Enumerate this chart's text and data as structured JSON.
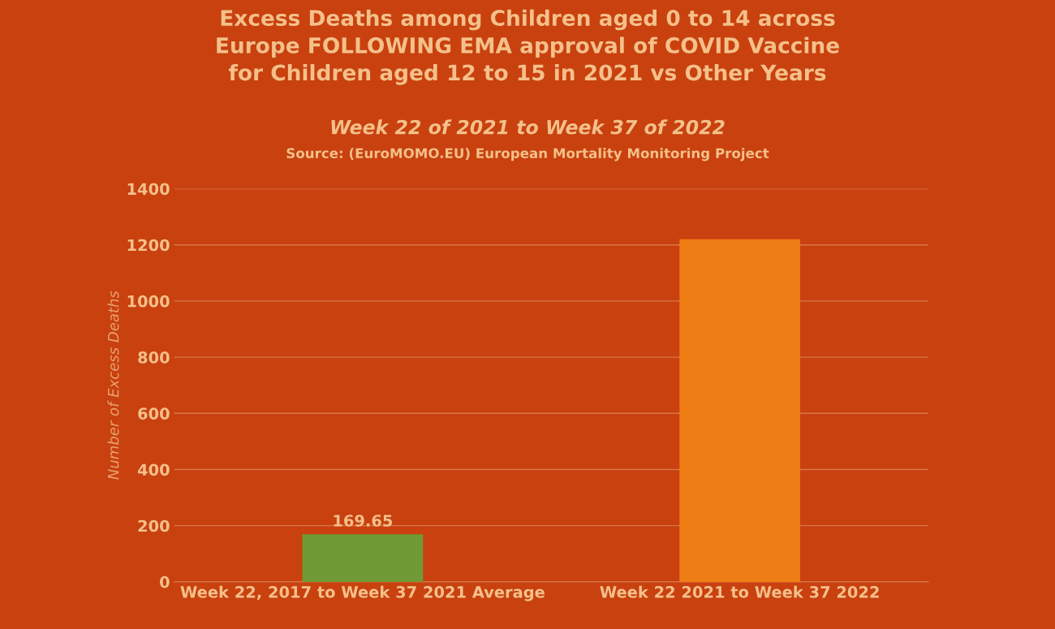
{
  "chart_data": {
    "type": "bar",
    "title": "Excess Deaths among Children aged 0 to 14 across\nEurope FOLLOWING EMA approval of COVID Vaccine\nfor Children aged 12 to 15 in 2021 vs Other Years",
    "subtitle": "Week 22 of 2021 to Week 37 of 2022",
    "annotations": [
      "Source: (EuroMOMO.EU) European Mortality Monitoring Project"
    ],
    "ylabel": "Number of Excess Deaths",
    "categories": [
      "Week 22, 2017 to Week 37 2021 Average",
      "Week 22 2021 to Week 37 2022"
    ],
    "values": [
      169.65,
      1220
    ],
    "colors": [
      "#6f9a35",
      "#ef7d15"
    ],
    "value_labels": [
      "169.65",
      null
    ],
    "ylim": [
      0,
      1400
    ],
    "yticks": [
      0,
      200,
      400,
      600,
      800,
      1000,
      1200,
      1400
    ],
    "grid": "y"
  }
}
